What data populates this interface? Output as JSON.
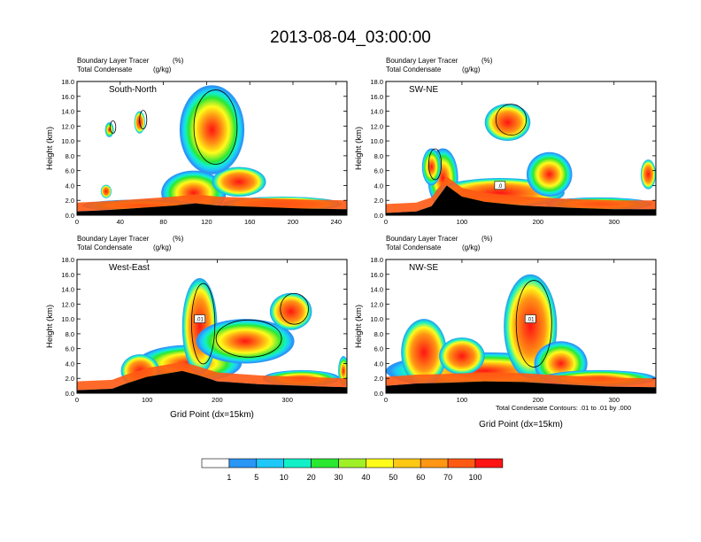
{
  "figure": {
    "title": "2013-08-04_03:00:00",
    "contour_note": "Total Condensate Contours: .01 to .01 by .000",
    "xlabel": "Grid Point (dx=15km)",
    "ylabel": "Height (km)"
  },
  "colorbar": {
    "labels": [
      "1",
      "5",
      "10",
      "20",
      "30",
      "40",
      "50",
      "60",
      "70",
      "100"
    ],
    "colors": [
      "#ffffff",
      "#2a96f5",
      "#1ec8f8",
      "#12f0c8",
      "#2ae832",
      "#a0f028",
      "#fffc1a",
      "#ffc814",
      "#ff9614",
      "#ff5a14",
      "#ff1414"
    ]
  },
  "chart_data": [
    {
      "type": "heatmap",
      "label": "South-North",
      "subtitle_left": "Boundary Layer Tracer",
      "subtitle_unit": "(%)",
      "subtitle2_left": "Total Condensate",
      "subtitle2_unit": "(g/kg)",
      "xlim": [
        0,
        250
      ],
      "ylim": [
        0,
        18
      ],
      "xticks": [
        0,
        40,
        80,
        120,
        160,
        200,
        240
      ],
      "yticks": [
        "0.0",
        "2.0",
        "4.0",
        "6.0",
        "8.0",
        "10.0",
        "12.0",
        "14.0",
        "16.0",
        "18.0"
      ],
      "contour_label": "",
      "dot_x": 124,
      "terrain": [
        [
          0,
          0.5
        ],
        [
          30,
          0.7
        ],
        [
          60,
          1.0
        ],
        [
          90,
          1.3
        ],
        [
          110,
          1.6
        ],
        [
          130,
          1.3
        ],
        [
          170,
          1.1
        ],
        [
          210,
          0.9
        ],
        [
          250,
          0.8
        ]
      ],
      "blobs": [
        {
          "x": 108,
          "y": 3.0,
          "w": 60,
          "h": 6.0
        },
        {
          "x": 190,
          "y": 1.5,
          "w": 110,
          "h": 2.0
        },
        {
          "x": 60,
          "y": 1.3,
          "w": 110,
          "h": 1.6
        },
        {
          "x": 150,
          "y": 4.5,
          "w": 50,
          "h": 4.0
        },
        {
          "x": 125,
          "y": 11.5,
          "w": 60,
          "h": 12.0
        },
        {
          "x": 58,
          "y": 12.5,
          "w": 10,
          "h": 3.0
        },
        {
          "x": 30,
          "y": 11.5,
          "w": 8,
          "h": 2.0
        },
        {
          "x": 27,
          "y": 3.2,
          "w": 10,
          "h": 1.8
        }
      ]
    },
    {
      "type": "heatmap",
      "label": "SW-NE",
      "subtitle_left": "Boundary Layer Tracer",
      "subtitle_unit": "(%)",
      "subtitle2_left": "Total Condensate",
      "subtitle2_unit": "(g/kg)",
      "xlim": [
        0,
        355
      ],
      "ylim": [
        0,
        18
      ],
      "xticks": [
        0,
        100,
        200,
        300
      ],
      "yticks": [
        "0.0",
        "2.0",
        "4.0",
        "6.0",
        "8.0",
        "10.0",
        "12.0",
        "14.0",
        "16.0",
        "18.0"
      ],
      "contour_label": ".0",
      "dot_x": 180,
      "terrain": [
        [
          0,
          0.3
        ],
        [
          40,
          0.5
        ],
        [
          60,
          1.2
        ],
        [
          80,
          4.0
        ],
        [
          100,
          2.5
        ],
        [
          130,
          1.8
        ],
        [
          180,
          1.3
        ],
        [
          240,
          1.0
        ],
        [
          300,
          0.8
        ],
        [
          355,
          0.8
        ]
      ],
      "blobs": [
        {
          "x": 75,
          "y": 5.0,
          "w": 40,
          "h": 8.0
        },
        {
          "x": 150,
          "y": 3.0,
          "w": 170,
          "h": 4.0
        },
        {
          "x": 280,
          "y": 1.5,
          "w": 140,
          "h": 1.8
        },
        {
          "x": 160,
          "y": 12.5,
          "w": 60,
          "h": 5.0
        },
        {
          "x": 215,
          "y": 5.5,
          "w": 60,
          "h": 6.0
        },
        {
          "x": 345,
          "y": 5.5,
          "w": 20,
          "h": 4.0
        },
        {
          "x": 60,
          "y": 6.5,
          "w": 25,
          "h": 5.0
        }
      ]
    },
    {
      "type": "heatmap",
      "label": "West-East",
      "subtitle_left": "Boundary Layer Tracer",
      "subtitle_unit": "(%)",
      "subtitle2_left": "Total Condensate",
      "subtitle2_unit": "(g/kg)",
      "xlim": [
        0,
        385
      ],
      "ylim": [
        0,
        18
      ],
      "xticks": [
        0,
        100,
        200,
        300
      ],
      "yticks": [
        "0.0",
        "2.0",
        "4.0",
        "6.0",
        "8.0",
        "10.0",
        "12.0",
        "14.0",
        "16.0",
        "18.0"
      ],
      "contour_label": ".01",
      "dot_x": 180,
      "terrain": [
        [
          0,
          0.4
        ],
        [
          50,
          0.6
        ],
        [
          70,
          1.3
        ],
        [
          100,
          2.2
        ],
        [
          150,
          3.0
        ],
        [
          170,
          2.5
        ],
        [
          200,
          1.6
        ],
        [
          260,
          1.2
        ],
        [
          320,
          1.0
        ],
        [
          385,
          0.8
        ]
      ],
      "blobs": [
        {
          "x": 160,
          "y": 4.0,
          "w": 150,
          "h": 5.0
        },
        {
          "x": 175,
          "y": 9.0,
          "w": 50,
          "h": 13.0
        },
        {
          "x": 240,
          "y": 7.0,
          "w": 140,
          "h": 6.0
        },
        {
          "x": 305,
          "y": 11.0,
          "w": 60,
          "h": 5.0
        },
        {
          "x": 320,
          "y": 2.0,
          "w": 110,
          "h": 2.2
        },
        {
          "x": 90,
          "y": 3.0,
          "w": 55,
          "h": 4.5
        },
        {
          "x": 380,
          "y": 3.0,
          "w": 15,
          "h": 4.0
        }
      ]
    },
    {
      "type": "heatmap",
      "label": "NW-SE",
      "subtitle_left": "Boundary Layer Tracer",
      "subtitle_unit": "(%)",
      "subtitle2_left": "Total Condensate",
      "subtitle2_unit": "(g/kg)",
      "xlim": [
        0,
        355
      ],
      "ylim": [
        0,
        18
      ],
      "xticks": [
        0,
        100,
        200,
        300
      ],
      "yticks": [
        "0.0",
        "2.0",
        "4.0",
        "6.0",
        "8.0",
        "10.0",
        "12.0",
        "14.0",
        "16.0",
        "18.0"
      ],
      "contour_label": ".01",
      "dot_x": 178,
      "terrain": [
        [
          0,
          1.0
        ],
        [
          40,
          1.3
        ],
        [
          80,
          1.4
        ],
        [
          130,
          1.6
        ],
        [
          180,
          1.5
        ],
        [
          230,
          1.2
        ],
        [
          290,
          0.9
        ],
        [
          355,
          0.8
        ]
      ],
      "blobs": [
        {
          "x": 130,
          "y": 3.0,
          "w": 260,
          "h": 5.0
        },
        {
          "x": 190,
          "y": 9.0,
          "w": 70,
          "h": 14.0
        },
        {
          "x": 230,
          "y": 4.0,
          "w": 70,
          "h": 6.0
        },
        {
          "x": 50,
          "y": 5.5,
          "w": 60,
          "h": 9.0
        },
        {
          "x": 280,
          "y": 2.0,
          "w": 150,
          "h": 2.2
        },
        {
          "x": 100,
          "y": 5.0,
          "w": 60,
          "h": 5.0
        }
      ]
    }
  ]
}
